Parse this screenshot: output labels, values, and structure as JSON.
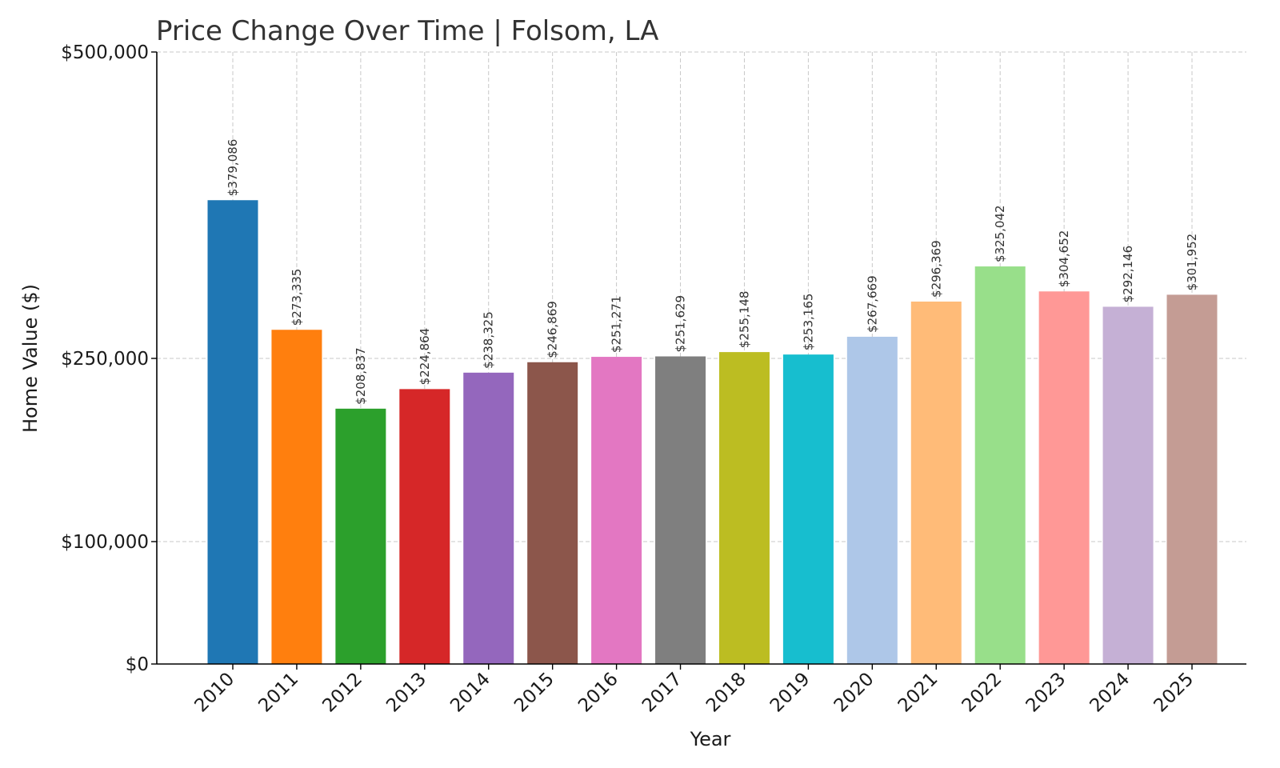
{
  "chart_data": {
    "type": "bar",
    "title": "Price Change Over Time | Folsom, LA",
    "xlabel": "Year",
    "ylabel": "Home Value ($)",
    "ylim": [
      0,
      500000
    ],
    "y_scale": "piecewise-linear (ticks at $0, $100,000, $250,000, $500,000)",
    "y_ticks": [
      0,
      100000,
      250000,
      500000
    ],
    "y_tick_labels": [
      "$0",
      "$100,000",
      "$250,000",
      "$500,000"
    ],
    "grid": true,
    "categories": [
      "2010",
      "2011",
      "2012",
      "2013",
      "2014",
      "2015",
      "2016",
      "2017",
      "2018",
      "2019",
      "2020",
      "2021",
      "2022",
      "2023",
      "2024",
      "2025"
    ],
    "values": [
      379086,
      273335,
      208837,
      224864,
      238325,
      246869,
      251271,
      251629,
      255148,
      253165,
      267669,
      296369,
      325042,
      304652,
      292146,
      301952
    ],
    "data_labels": [
      "$379,086",
      "$273,335",
      "$208,837",
      "$224,864",
      "$238,325",
      "$246,869",
      "$251,271",
      "$251,629",
      "$255,148",
      "$253,165",
      "$267,669",
      "$296,369",
      "$325,042",
      "$304,652",
      "$292,146",
      "$301,952"
    ],
    "colors": [
      "#1f77b4",
      "#ff7f0e",
      "#2ca02c",
      "#d62728",
      "#9467bd",
      "#8c564b",
      "#e377c2",
      "#7f7f7f",
      "#bcbd22",
      "#17becf",
      "#aec7e8",
      "#ffbb78",
      "#98df8a",
      "#ff9896",
      "#c5b0d5",
      "#c49c94"
    ]
  }
}
